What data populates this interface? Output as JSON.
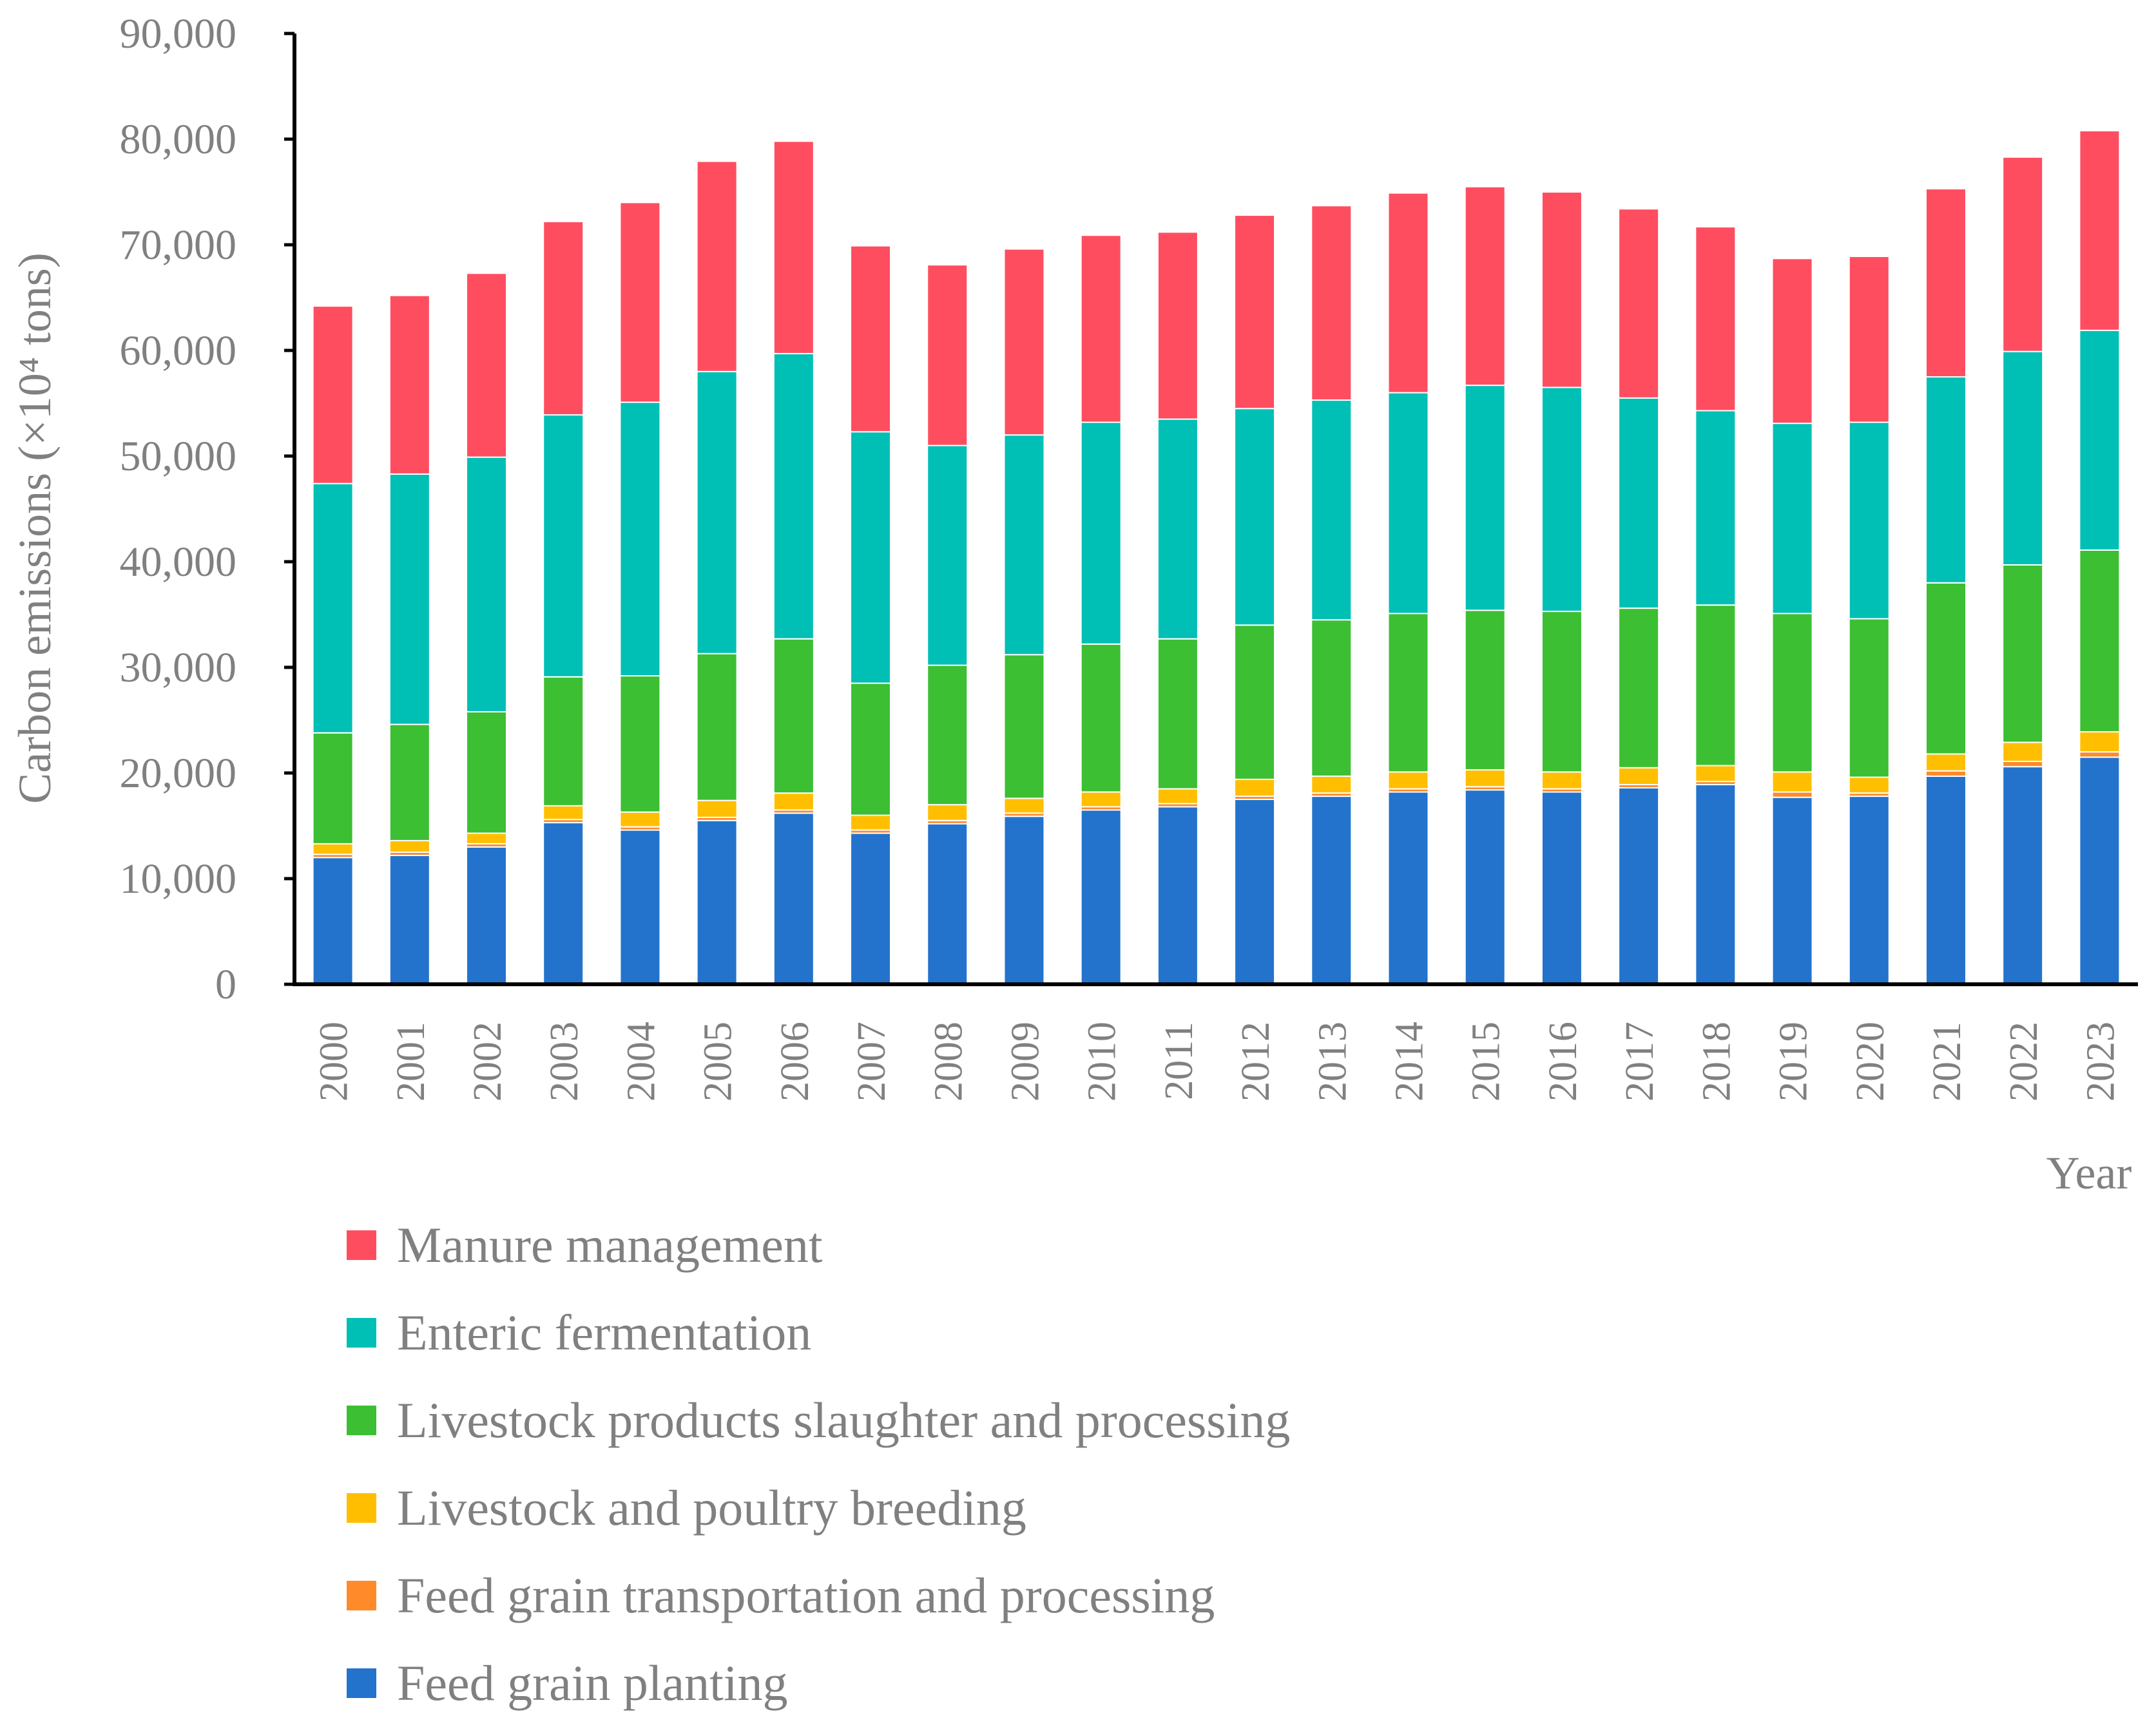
{
  "chart_data": {
    "type": "bar",
    "stacked": true,
    "title": "",
    "xlabel": "Year",
    "ylabel": "Carbon emissions (×10⁴ tons)",
    "ylim": [
      0,
      90000
    ],
    "yticks": [
      0,
      10000,
      20000,
      30000,
      40000,
      50000,
      60000,
      70000,
      80000,
      90000
    ],
    "ytick_labels": [
      "0",
      "10,000",
      "20,000",
      "30,000",
      "40,000",
      "50,000",
      "60,000",
      "70,000",
      "80,000",
      "90,000"
    ],
    "categories": [
      "2000",
      "2001",
      "2002",
      "2003",
      "2004",
      "2005",
      "2006",
      "2007",
      "2008",
      "2009",
      "2010",
      "2011",
      "2012",
      "2013",
      "2014",
      "2015",
      "2016",
      "2017",
      "2018",
      "2019",
      "2020",
      "2021",
      "2022",
      "2023"
    ],
    "series": [
      {
        "name": "Feed grain planting",
        "color": "#2373CC",
        "values": [
          12000,
          12200,
          13000,
          15300,
          14600,
          15500,
          16200,
          14300,
          15200,
          15900,
          16500,
          16800,
          17500,
          17800,
          18200,
          18400,
          18200,
          18600,
          18900,
          17700,
          17800,
          19700,
          20600,
          21500
        ]
      },
      {
        "name": "Feed grain transportation and processing",
        "color": "#FF8A2A",
        "values": [
          300,
          300,
          300,
          300,
          300,
          300,
          300,
          300,
          300,
          300,
          300,
          300,
          300,
          300,
          300,
          300,
          300,
          300,
          300,
          500,
          300,
          500,
          500,
          500
        ]
      },
      {
        "name": "Livestock and poultry breeding",
        "color": "#FFBF00",
        "values": [
          1000,
          1100,
          1000,
          1300,
          1400,
          1600,
          1600,
          1400,
          1500,
          1400,
          1400,
          1400,
          1600,
          1600,
          1600,
          1600,
          1600,
          1600,
          1500,
          1900,
          1500,
          1600,
          1800,
          1900
        ]
      },
      {
        "name": "Livestock products slaughter and processing",
        "color": "#3CBF32",
        "values": [
          10500,
          11000,
          11500,
          12200,
          12900,
          13900,
          14600,
          12500,
          13200,
          13600,
          14000,
          14200,
          14600,
          14800,
          15000,
          15100,
          15200,
          15100,
          15200,
          15000,
          15000,
          16200,
          16800,
          17200
        ]
      },
      {
        "name": "Enteric fermentation",
        "color": "#00BFB5",
        "values": [
          23600,
          23700,
          24100,
          24800,
          25900,
          26700,
          27000,
          23800,
          20800,
          20800,
          21000,
          20800,
          20500,
          20800,
          20900,
          21300,
          21200,
          19900,
          18400,
          18000,
          18600,
          19500,
          20200,
          20800
        ]
      },
      {
        "name": "Manure management",
        "color": "#FF4D60",
        "values": [
          16800,
          16900,
          17400,
          18300,
          18900,
          19900,
          20100,
          17600,
          17100,
          17600,
          17700,
          17700,
          18300,
          18400,
          18900,
          18800,
          18500,
          17900,
          17400,
          15600,
          15700,
          17800,
          18400,
          18900
        ]
      }
    ],
    "legend": {
      "position": "bottom-left",
      "order": [
        "Manure management",
        "Enteric fermentation",
        "Livestock products slaughter and processing",
        "Livestock and poultry breeding",
        "Feed grain transportation and processing",
        "Feed grain planting"
      ]
    }
  }
}
